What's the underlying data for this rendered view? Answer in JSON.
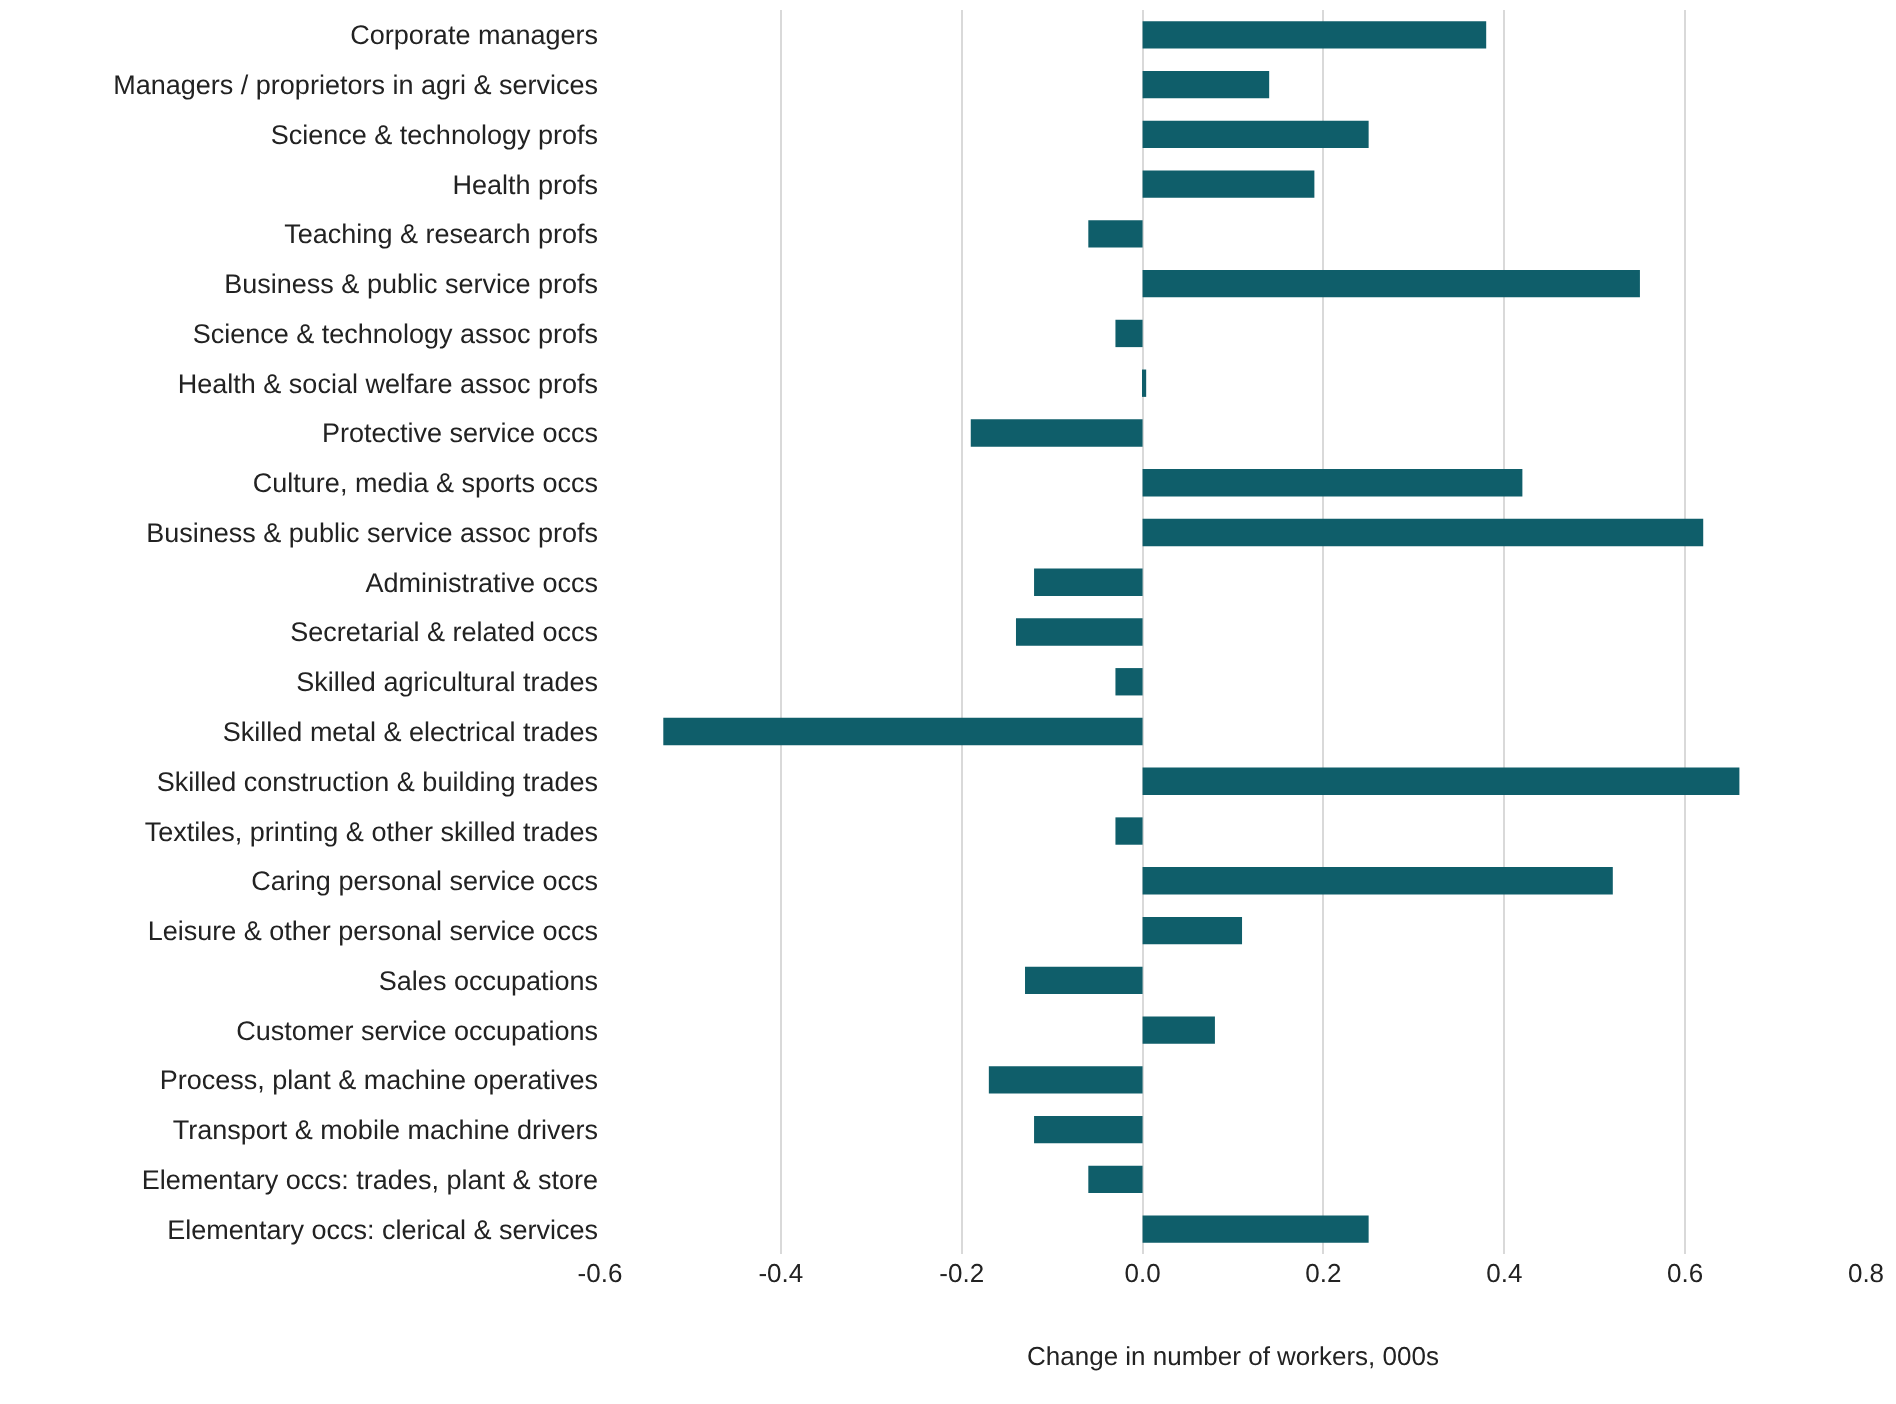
{
  "chart_data": {
    "type": "bar",
    "orientation": "horizontal",
    "xlabel": "Change in number of workers, 000s",
    "categories": [
      "Corporate managers",
      "Managers / proprietors in agri & services",
      "Science & technology profs",
      "Health profs",
      "Teaching & research profs",
      "Business & public service profs",
      "Science & technology assoc profs",
      "Health & social welfare assoc profs",
      "Protective service occs",
      "Culture, media & sports occs",
      "Business & public service assoc profs",
      "Administrative occs",
      "Secretarial & related occs",
      "Skilled agricultural trades",
      "Skilled metal & electrical trades",
      "Skilled construction & building trades",
      "Textiles, printing & other skilled trades",
      "Caring personal service occs",
      "Leisure & other personal service occs",
      "Sales occupations",
      "Customer service occupations",
      "Process, plant & machine operatives",
      "Transport & mobile machine drivers",
      "Elementary occs: trades, plant & store",
      "Elementary occs: clerical & services"
    ],
    "values": [
      0.38,
      0.14,
      0.25,
      0.19,
      -0.06,
      0.55,
      -0.03,
      0.004,
      -0.19,
      0.42,
      0.62,
      -0.12,
      -0.14,
      -0.03,
      -0.53,
      0.66,
      -0.03,
      0.52,
      0.11,
      -0.13,
      0.08,
      -0.17,
      -0.12,
      -0.06,
      0.25
    ],
    "color": "#0f5e6a",
    "xlim": [
      -0.6,
      0.8
    ],
    "xticks": [
      {
        "value": -0.6,
        "label": "-0.6"
      },
      {
        "value": -0.4,
        "label": "-0.4"
      },
      {
        "value": -0.2,
        "label": "-0.2"
      },
      {
        "value": 0,
        "label": "0.0"
      },
      {
        "value": 0.2,
        "label": "0.2"
      },
      {
        "value": 0.4,
        "label": "0.4"
      },
      {
        "value": 0.6,
        "label": "0.6"
      },
      {
        "value": 0.8,
        "label": "0.8"
      }
    ],
    "grid": "x"
  }
}
